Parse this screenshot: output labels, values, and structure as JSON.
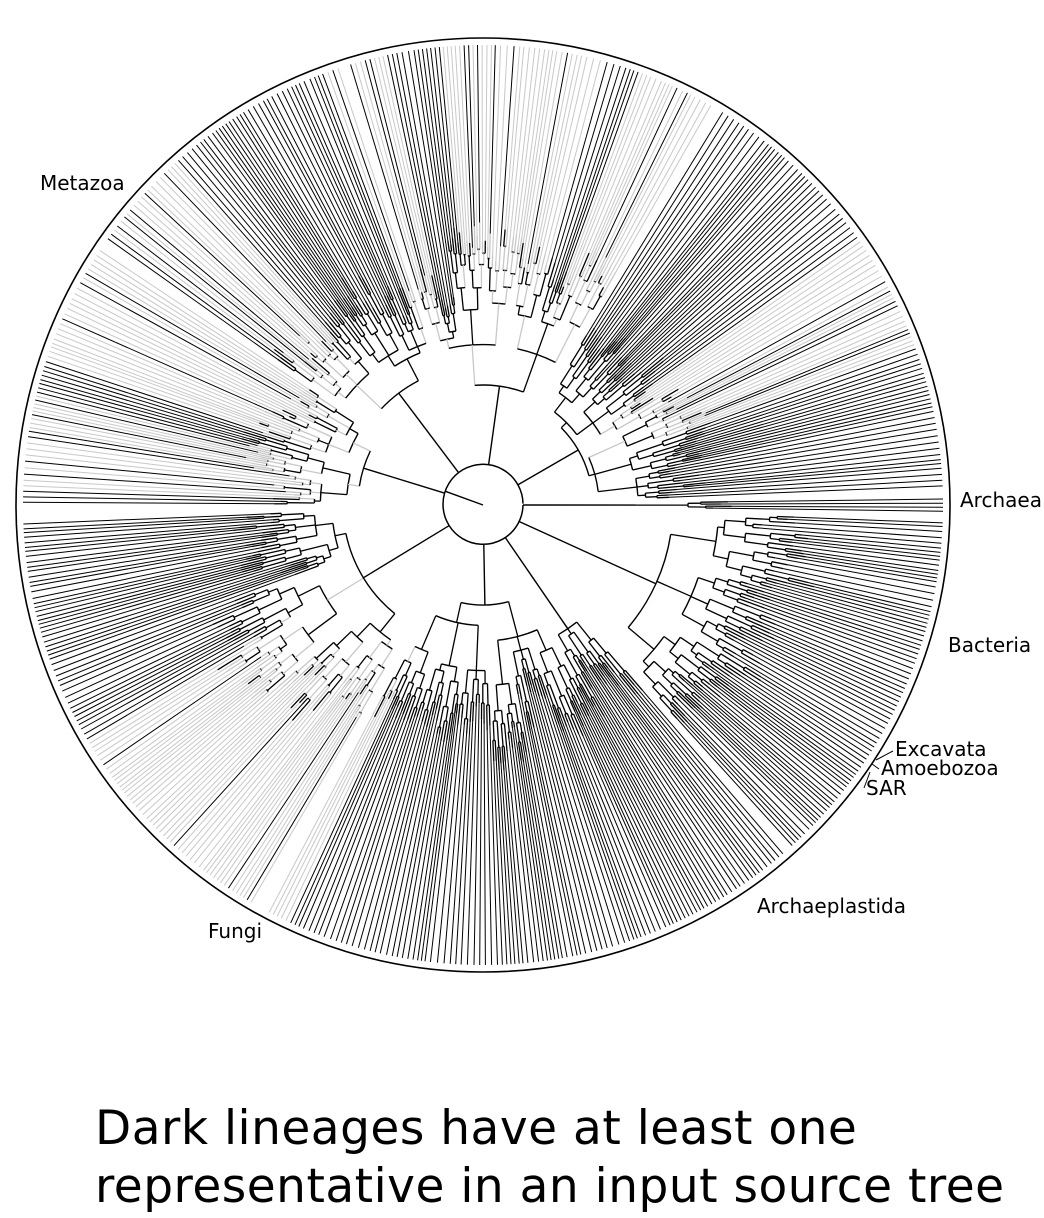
{
  "tree": {
    "clades": [
      {
        "id": "metazoa",
        "label": "Metazoa"
      },
      {
        "id": "archaea",
        "label": "Archaea"
      },
      {
        "id": "bacteria",
        "label": "Bacteria"
      },
      {
        "id": "excavata",
        "label": "Excavata"
      },
      {
        "id": "amoebozoa",
        "label": "Amoebozoa"
      },
      {
        "id": "sar",
        "label": "SAR"
      },
      {
        "id": "archaeplastida",
        "label": "Archaeplastida"
      },
      {
        "id": "fungi",
        "label": "Fungi"
      }
    ],
    "colors": {
      "represented": "#000000",
      "unrepresented": "#c8c8c8",
      "background": "#ffffff"
    }
  },
  "caption": {
    "line1": "Dark lineages have at least one",
    "line2": "representative in an input source tree"
  }
}
